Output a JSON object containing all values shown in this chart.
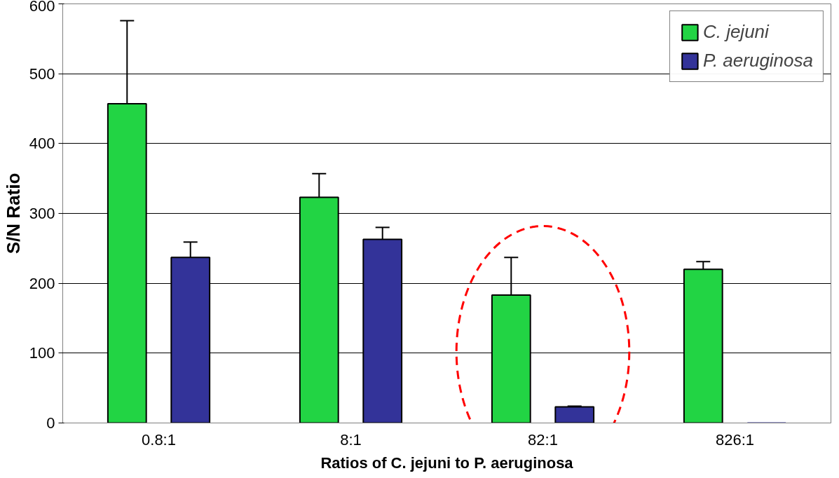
{
  "chart_data": {
    "type": "bar",
    "xlabel": "Ratios of C. jejuni to P. aeruginosa",
    "ylabel": "S/N Ratio",
    "categories": [
      "0.8:1",
      "8:1",
      "82:1",
      "826:1"
    ],
    "series": [
      {
        "name": "C. jejuni",
        "color": "#22d444",
        "values": [
          457,
          323,
          183,
          220
        ],
        "errors": [
          119,
          34,
          54,
          11
        ]
      },
      {
        "name": "P. aeruginosa",
        "color": "#333399",
        "values": [
          237,
          263,
          23,
          0
        ],
        "errors": [
          22,
          17,
          1,
          null
        ]
      }
    ],
    "ylim": [
      0,
      600
    ],
    "yticks": [
      0,
      100,
      200,
      300,
      400,
      500,
      600
    ],
    "grid": "y",
    "legend": "top right"
  }
}
